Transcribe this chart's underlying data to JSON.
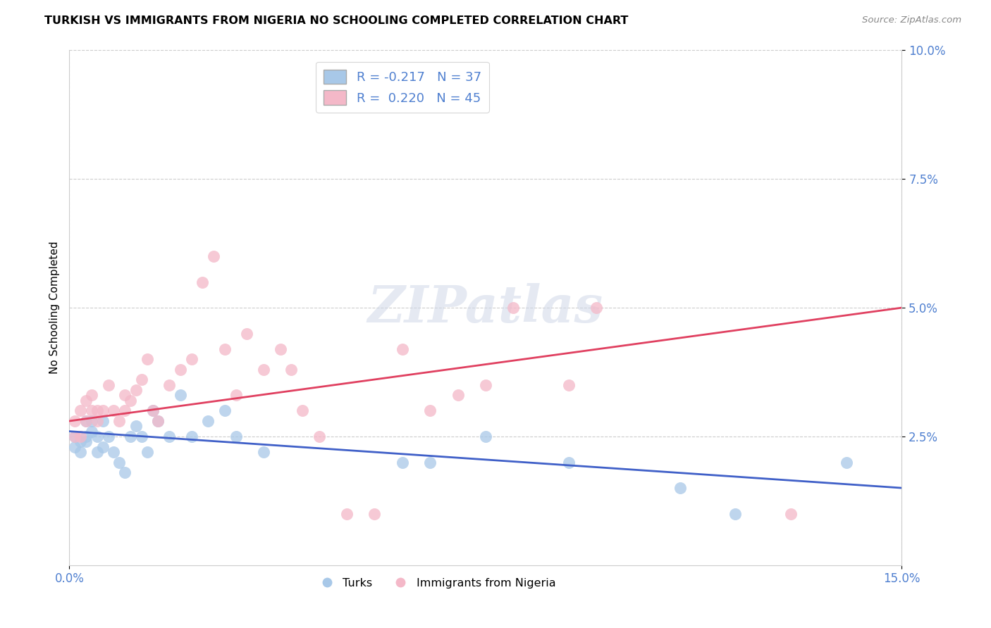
{
  "title": "TURKISH VS IMMIGRANTS FROM NIGERIA NO SCHOOLING COMPLETED CORRELATION CHART",
  "source": "Source: ZipAtlas.com",
  "ylabel": "No Schooling Completed",
  "xlim": [
    0.0,
    0.15
  ],
  "ylim": [
    0.0,
    0.1
  ],
  "xtick_vals": [
    0.0,
    0.15
  ],
  "xtick_labels": [
    "0.0%",
    "15.0%"
  ],
  "ytick_vals": [
    0.025,
    0.05,
    0.075,
    0.1
  ],
  "ytick_labels": [
    "2.5%",
    "5.0%",
    "7.5%",
    "10.0%"
  ],
  "legend_label_turks": "R = -0.217   N = 37",
  "legend_label_nigeria": "R =  0.220   N = 45",
  "color_turks": "#a8c8e8",
  "color_nigeria": "#f4b8c8",
  "line_color_turks": "#4060c8",
  "line_color_nigeria": "#e04060",
  "turks_line_x0": 0.0,
  "turks_line_y0": 0.026,
  "turks_line_x1": 0.15,
  "turks_line_y1": 0.015,
  "nigeria_line_x0": 0.0,
  "nigeria_line_y0": 0.028,
  "nigeria_line_x1": 0.15,
  "nigeria_line_y1": 0.05,
  "watermark": "ZIPatlas",
  "background_color": "#ffffff",
  "grid_color": "#cccccc",
  "tick_color": "#5080d0",
  "turks_x": [
    0.001,
    0.001,
    0.002,
    0.002,
    0.003,
    0.003,
    0.003,
    0.004,
    0.004,
    0.005,
    0.005,
    0.006,
    0.006,
    0.007,
    0.008,
    0.009,
    0.01,
    0.011,
    0.012,
    0.013,
    0.014,
    0.015,
    0.016,
    0.018,
    0.02,
    0.022,
    0.025,
    0.028,
    0.03,
    0.035,
    0.06,
    0.065,
    0.075,
    0.09,
    0.11,
    0.12,
    0.14
  ],
  "turks_y": [
    0.025,
    0.023,
    0.024,
    0.022,
    0.025,
    0.028,
    0.024,
    0.026,
    0.028,
    0.022,
    0.025,
    0.023,
    0.028,
    0.025,
    0.022,
    0.02,
    0.018,
    0.025,
    0.027,
    0.025,
    0.022,
    0.03,
    0.028,
    0.025,
    0.033,
    0.025,
    0.028,
    0.03,
    0.025,
    0.022,
    0.02,
    0.02,
    0.025,
    0.02,
    0.015,
    0.01,
    0.02
  ],
  "nigeria_x": [
    0.001,
    0.001,
    0.002,
    0.002,
    0.003,
    0.003,
    0.004,
    0.004,
    0.005,
    0.005,
    0.006,
    0.007,
    0.008,
    0.009,
    0.01,
    0.01,
    0.011,
    0.012,
    0.013,
    0.014,
    0.015,
    0.016,
    0.018,
    0.02,
    0.022,
    0.024,
    0.026,
    0.028,
    0.03,
    0.032,
    0.035,
    0.038,
    0.04,
    0.042,
    0.045,
    0.05,
    0.055,
    0.06,
    0.065,
    0.07,
    0.075,
    0.08,
    0.09,
    0.095,
    0.13
  ],
  "nigeria_y": [
    0.028,
    0.025,
    0.03,
    0.025,
    0.028,
    0.032,
    0.03,
    0.033,
    0.028,
    0.03,
    0.03,
    0.035,
    0.03,
    0.028,
    0.03,
    0.033,
    0.032,
    0.034,
    0.036,
    0.04,
    0.03,
    0.028,
    0.035,
    0.038,
    0.04,
    0.055,
    0.06,
    0.042,
    0.033,
    0.045,
    0.038,
    0.042,
    0.038,
    0.03,
    0.025,
    0.01,
    0.01,
    0.042,
    0.03,
    0.033,
    0.035,
    0.05,
    0.035,
    0.05,
    0.01
  ]
}
